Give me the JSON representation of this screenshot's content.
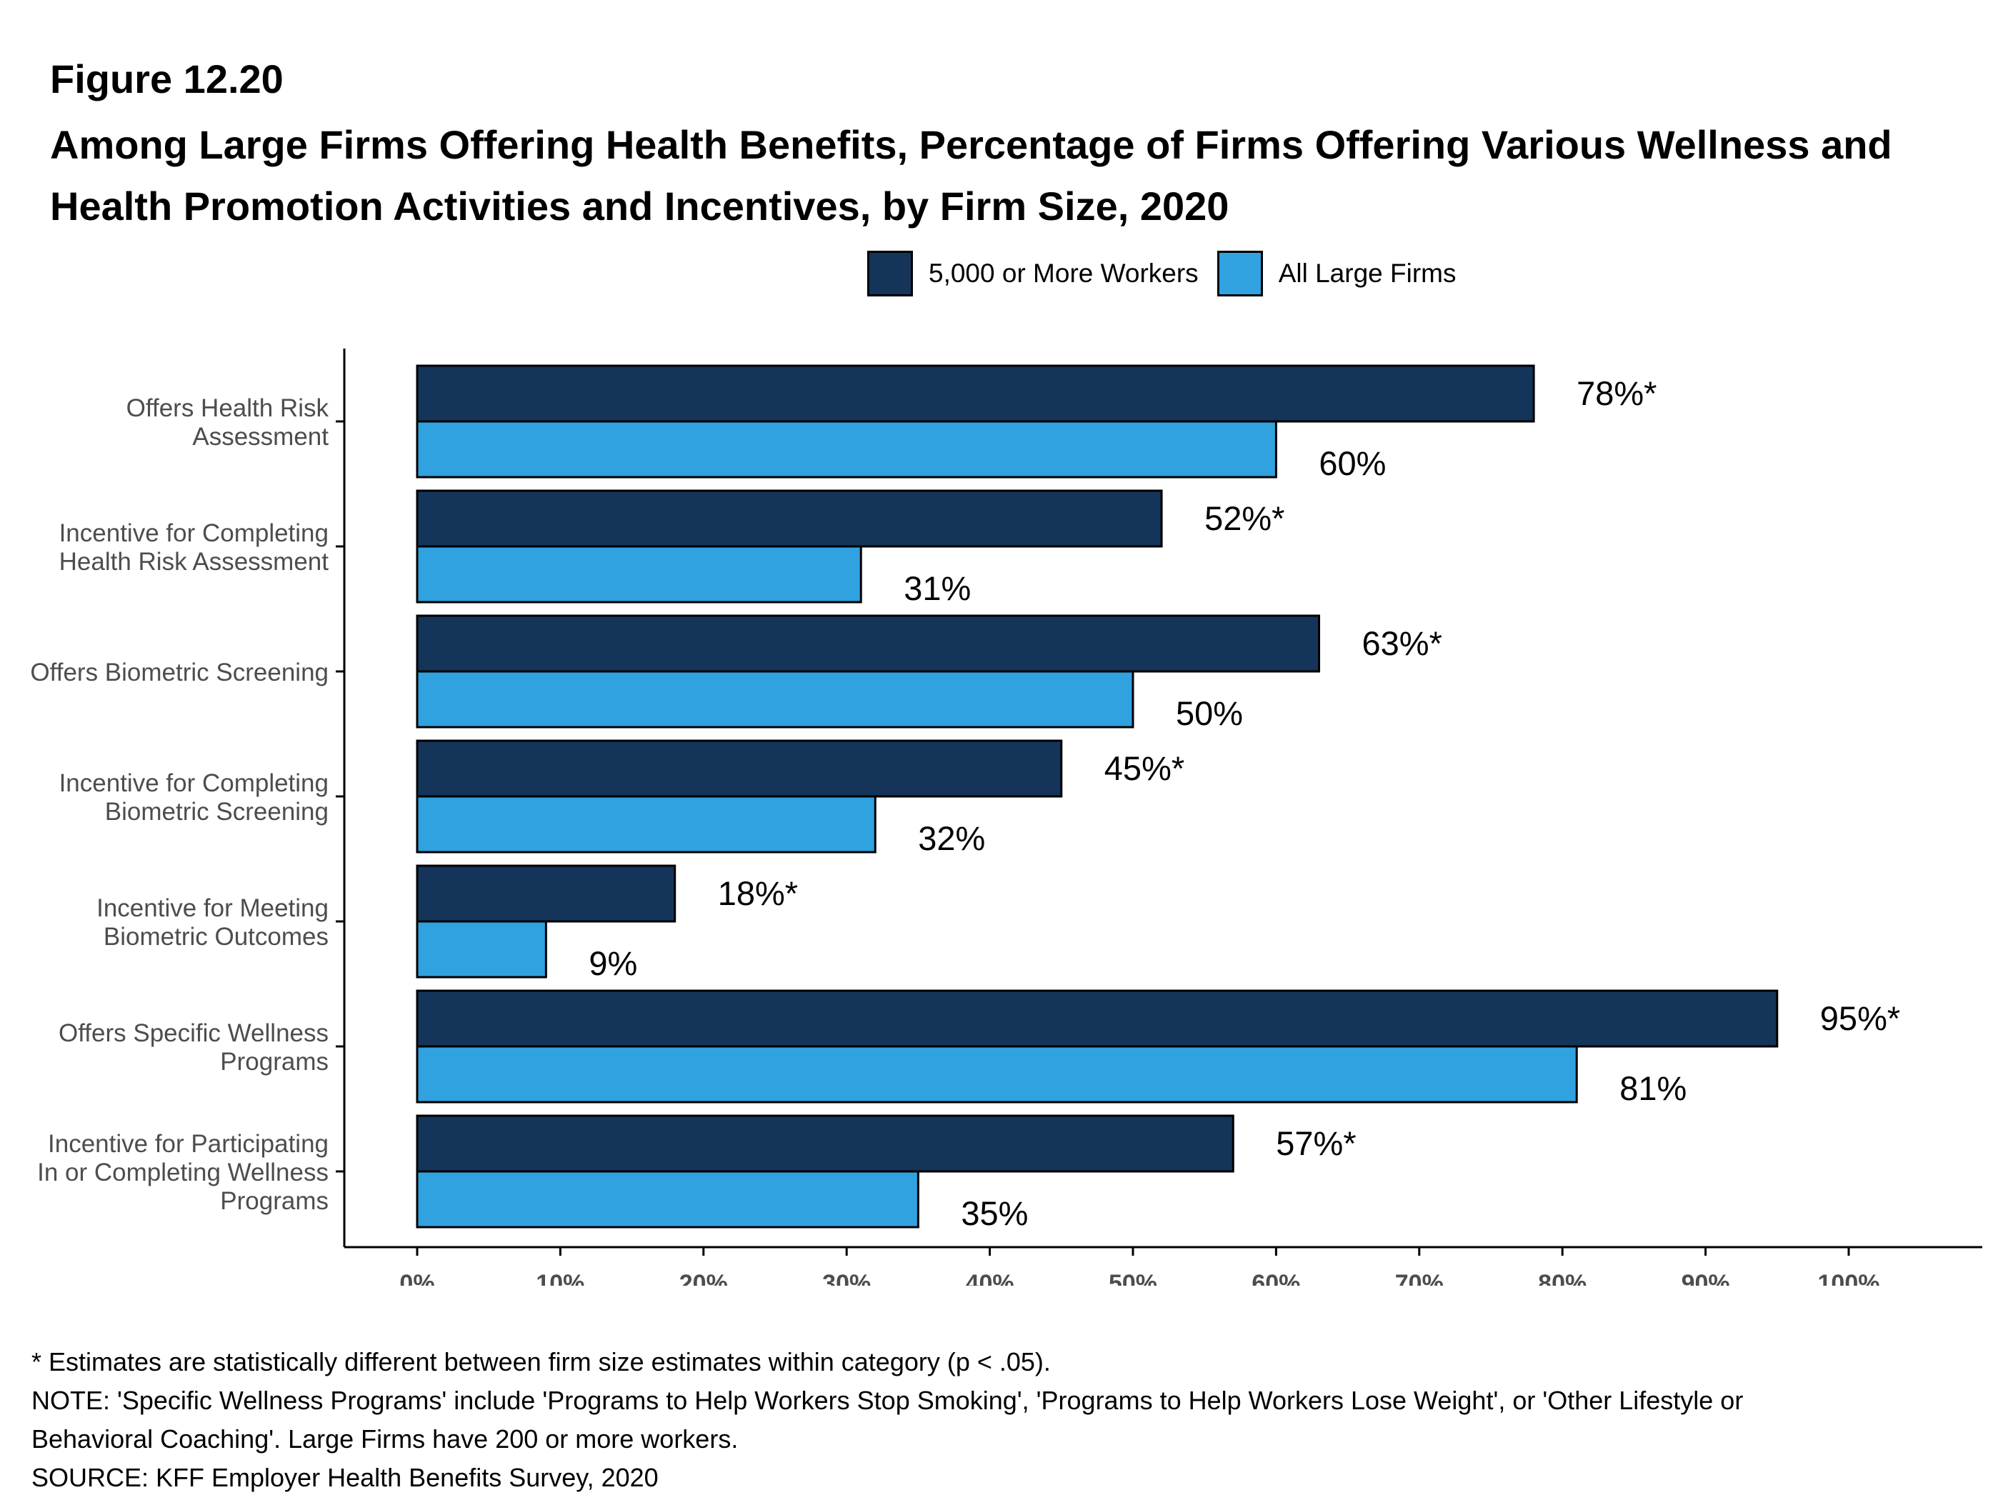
{
  "figure_number": "Figure 12.20",
  "title": "Among Large Firms Offering Health Benefits, Percentage of Firms Offering Various Wellness and Health Promotion Activities and Incentives, by Firm Size, 2020",
  "colors": {
    "large_5000": "#15345a",
    "all_large": "#30a2e0",
    "axis": "#000000",
    "category_text": "#4d4d4d",
    "tick_text": "#4d4d4d",
    "value_text": "#000000"
  },
  "chart_data": {
    "type": "bar",
    "orientation": "horizontal",
    "title": "",
    "xlabel": "",
    "ylabel": "",
    "xlim": [
      0,
      100
    ],
    "grid": false,
    "legend_position": "top",
    "x_ticks": [
      "0%",
      "10%",
      "20%",
      "30%",
      "40%",
      "50%",
      "60%",
      "70%",
      "80%",
      "90%",
      "100%"
    ],
    "categories": [
      [
        "Offers Health Risk",
        "Assessment"
      ],
      [
        "Incentive for Completing",
        "Health Risk Assessment"
      ],
      [
        "Offers Biometric Screening"
      ],
      [
        "Incentive for Completing",
        "Biometric Screening"
      ],
      [
        "Incentive for Meeting",
        "Biometric Outcomes"
      ],
      [
        "Offers Specific Wellness",
        "Programs"
      ],
      [
        "Incentive for Participating",
        "In or Completing Wellness",
        "Programs"
      ]
    ],
    "series": [
      {
        "name": "5,000 or More Workers",
        "color": "#15345a",
        "values": [
          78,
          52,
          63,
          45,
          18,
          95,
          57
        ],
        "labels": [
          "78%*",
          "52%*",
          "63%*",
          "45%*",
          "18%*",
          "95%*",
          "57%*"
        ]
      },
      {
        "name": "All Large Firms",
        "color": "#30a2e0",
        "values": [
          60,
          31,
          50,
          32,
          9,
          81,
          35
        ],
        "labels": [
          "60%",
          "31%",
          "50%",
          "32%",
          "9%",
          "81%",
          "35%"
        ]
      }
    ]
  },
  "notes": {
    "significance": "* Estimates are statistically different between firm size estimates within category (p < .05).",
    "note_line1": "NOTE: 'Specific Wellness Programs' include 'Programs to Help Workers Stop Smoking', 'Programs to Help Workers Lose Weight', or 'Other Lifestyle or",
    "note_line2": "Behavioral Coaching'. Large Firms have 200 or more workers.",
    "source": "SOURCE: KFF Employer Health Benefits Survey, 2020"
  }
}
